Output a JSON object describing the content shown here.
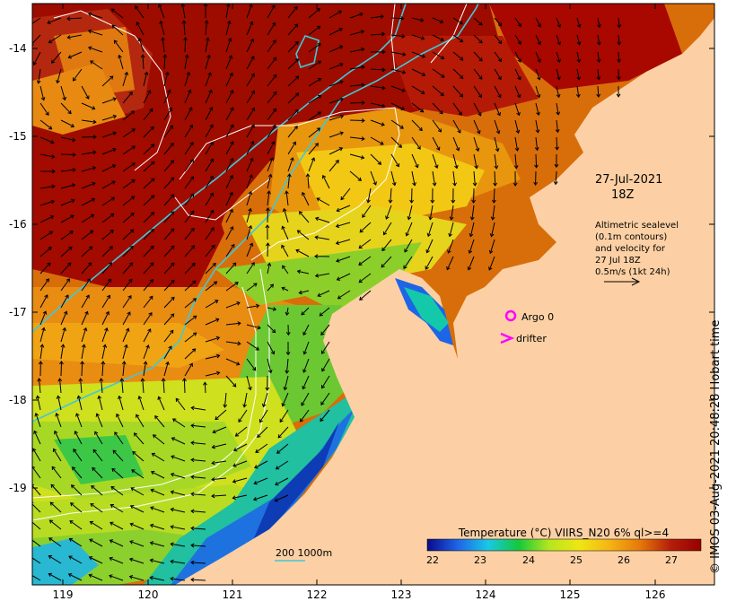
{
  "map": {
    "axes": {
      "x_ticks": [
        "119",
        "120",
        "121",
        "122",
        "123",
        "124",
        "125",
        "126"
      ],
      "y_ticks": [
        "-14",
        "-15",
        "-16",
        "-17",
        "-18",
        "-19"
      ]
    },
    "annotation": {
      "date": "27-Jul-2021",
      "hour": "18Z",
      "desc_lines": [
        "Altimetric sealevel",
        "(0.1m contours)",
        "and velocity for",
        "27 Jul 18Z",
        "0.5m/s (1kt 24h)"
      ]
    },
    "legend": {
      "argo_label": "Argo 0",
      "drifter_label": "drifter",
      "argo_color": "#ff00ff"
    },
    "bathymetry": {
      "label": "200  1000m",
      "color": "#40c8d8"
    },
    "colorbar": {
      "title": "Temperature (°C) VIIRS_N20 6% ql>=4",
      "ticks": [
        "22",
        "23",
        "24",
        "25",
        "26",
        "27"
      ],
      "stops": [
        "#0a0a8c",
        "#1e64e6",
        "#19c8e6",
        "#14c83c",
        "#b4e61e",
        "#f0e614",
        "#f5b414",
        "#e6780a",
        "#b41e0a",
        "#960000"
      ]
    },
    "land_color": "#fcd0a4"
  },
  "credit": "© IMOS 03-Aug-2021 20:48:28 Hobart time"
}
